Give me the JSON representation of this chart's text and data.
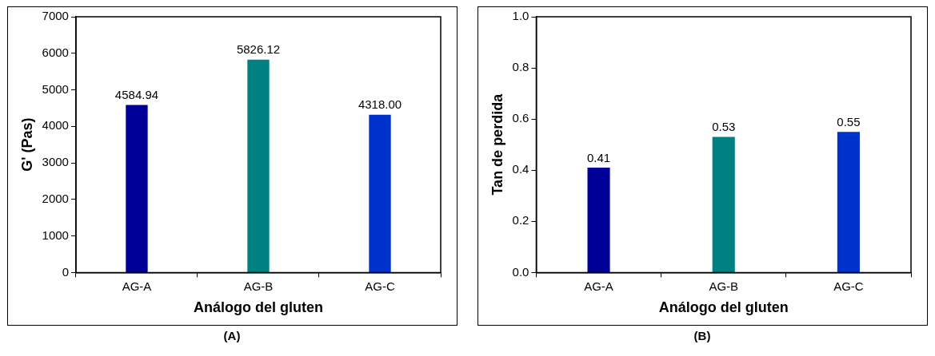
{
  "chart_data": [
    {
      "type": "bar",
      "categories": [
        "AG-A",
        "AG-B",
        "AG-C"
      ],
      "values": [
        4584.94,
        5826.12,
        4318.0
      ],
      "colors": [
        "#000099",
        "#008080",
        "#0033cc"
      ],
      "value_labels": [
        "4584.94",
        "5826.12",
        "4318.00"
      ],
      "xlabel": "Análogo del gluten",
      "ylabel": "G' (Pas)",
      "ylim": [
        0,
        7000
      ],
      "yticks": [
        0,
        1000,
        2000,
        3000,
        4000,
        5000,
        6000,
        7000
      ],
      "grid": false,
      "legend": false,
      "annotations": [
        "(A)"
      ]
    },
    {
      "type": "bar",
      "categories": [
        "AG-A",
        "AG-B",
        "AG-C"
      ],
      "values": [
        0.41,
        0.53,
        0.55
      ],
      "colors": [
        "#000099",
        "#008080",
        "#0033cc"
      ],
      "data_labels": true,
      "xlabel": "Análogo del gluten",
      "ylabel": "Tan de perdida",
      "ylim": [
        0,
        1.0
      ],
      "yticks": [
        {
          "value": 0,
          "label": "0.0"
        },
        {
          "value": 0.2,
          "label": "0.2"
        },
        {
          "value": 0.4,
          "label": "0.4"
        },
        {
          "value": 0.6,
          "label": "0.6"
        },
        {
          "value": 0.8,
          "label": "0.8"
        },
        {
          "value": 1.0,
          "label": "1.0"
        }
      ],
      "grid": false,
      "legend": false,
      "annotations": [
        "(B)"
      ]
    }
  ]
}
